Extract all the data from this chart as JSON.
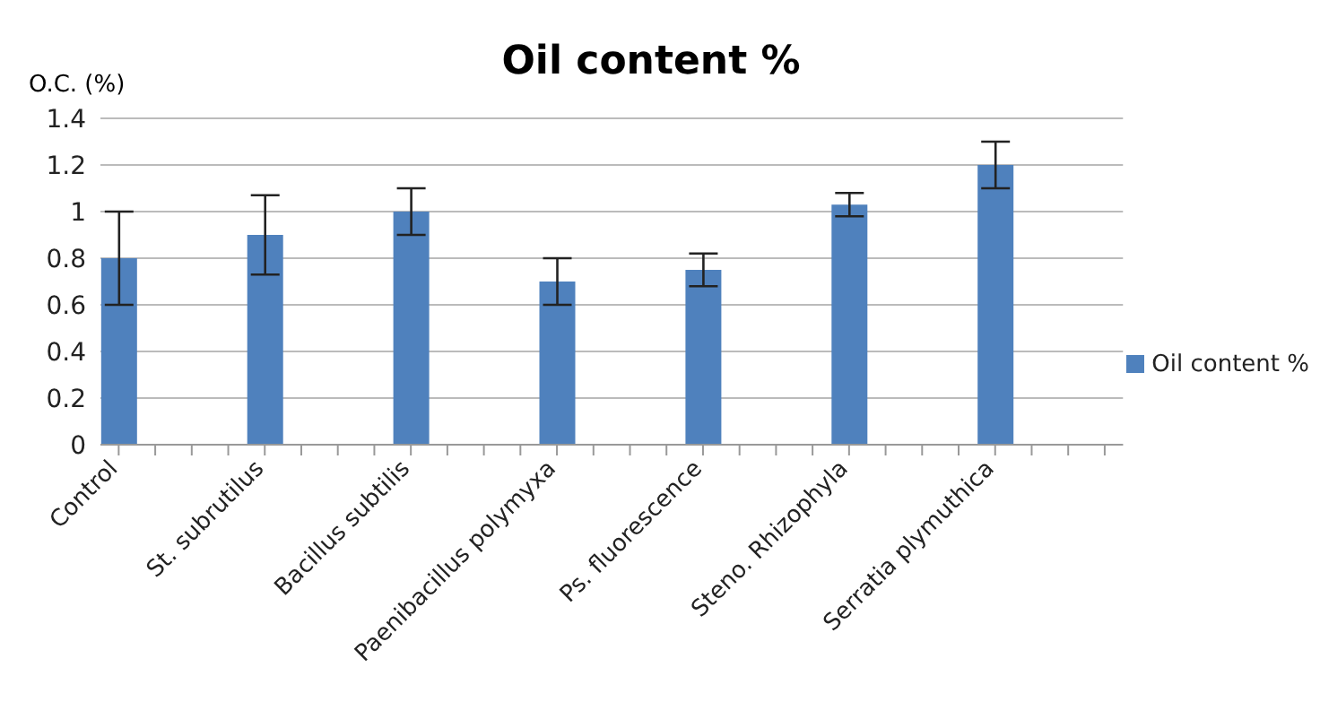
{
  "chart_data": {
    "type": "bar",
    "title": "Oil content %",
    "ylabel": "O.C. (%)",
    "categories": [
      "Control",
      null,
      null,
      null,
      "St. subrutilus",
      null,
      null,
      null,
      "Bacillus subtilis",
      null,
      null,
      null,
      "Paenibacillus polymyxa",
      null,
      null,
      null,
      "Ps. fluorescence",
      null,
      null,
      null,
      "Steno. Rhizophyla",
      null,
      null,
      null,
      "Serratia plymuthica",
      null,
      null,
      null
    ],
    "series": [
      {
        "name": "Oil content %",
        "color": "#4f81bd",
        "values": [
          0.8,
          null,
          null,
          null,
          0.9,
          null,
          null,
          null,
          1.0,
          null,
          null,
          null,
          0.7,
          null,
          null,
          null,
          0.75,
          null,
          null,
          null,
          1.03,
          null,
          null,
          null,
          1.2,
          null,
          null,
          null
        ],
        "errors": [
          0.2,
          null,
          null,
          null,
          0.17,
          null,
          null,
          null,
          0.1,
          null,
          null,
          null,
          0.1,
          null,
          null,
          null,
          0.07,
          null,
          null,
          null,
          0.05,
          null,
          null,
          null,
          0.1,
          null,
          null,
          null
        ]
      }
    ],
    "ylim": [
      0,
      1.4
    ],
    "yticks": [
      0,
      0.2,
      0.4,
      0.6,
      0.8,
      1,
      1.2,
      1.4
    ],
    "grid": "y",
    "legend": "right"
  }
}
